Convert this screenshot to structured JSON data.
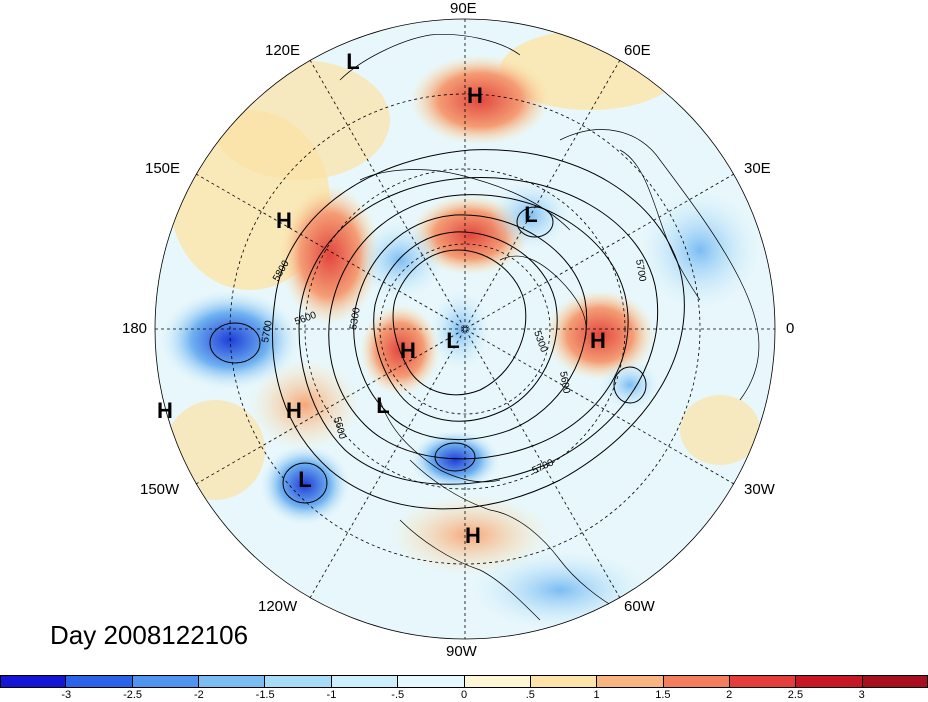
{
  "title": "Day 2008122106",
  "map": {
    "projection": "polar-stereographic-north",
    "longitude_labels": [
      "90E",
      "60E",
      "30E",
      "0",
      "30W",
      "60W",
      "90W",
      "120W",
      "150W",
      "180",
      "150E",
      "120E"
    ],
    "centers": [
      {
        "type": "L",
        "region": "NE Siberia"
      },
      {
        "type": "H",
        "region": "Central Asia"
      },
      {
        "type": "H",
        "region": "Kamchatka"
      },
      {
        "type": "L",
        "region": "Central Siberia"
      },
      {
        "type": "L",
        "region": "North Pole"
      },
      {
        "type": "H",
        "region": "Alaska/Arctic"
      },
      {
        "type": "H",
        "region": "Western Europe"
      },
      {
        "type": "H",
        "region": "Aleutians"
      },
      {
        "type": "H",
        "region": "Central Pacific"
      },
      {
        "type": "L",
        "region": "Canada"
      },
      {
        "type": "L",
        "region": "NE Pacific"
      },
      {
        "type": "H",
        "region": "Gulf of Mexico"
      }
    ],
    "contour_labels": [
      "5800",
      "5700",
      "5600",
      "5300",
      "5300",
      "5700",
      "5600",
      "5600",
      "5700"
    ],
    "colors": {
      "land_outline": "#000000",
      "grid": "#000000"
    }
  },
  "colorbar": {
    "ticks": [
      "-3",
      "-2.5",
      "-2",
      "-1.5",
      "-1",
      "-.5",
      "0",
      ".5",
      "1",
      "1.5",
      "2",
      "2.5",
      "3"
    ],
    "colors": [
      "#1515d6",
      "#2a63e8",
      "#4f94ee",
      "#7bbcf3",
      "#a6dcf8",
      "#cdeffc",
      "#e4f8fd",
      "#fff6d5",
      "#fce3a7",
      "#f8b481",
      "#f27e5e",
      "#e53d3b",
      "#c51726",
      "#a70f1f"
    ]
  }
}
